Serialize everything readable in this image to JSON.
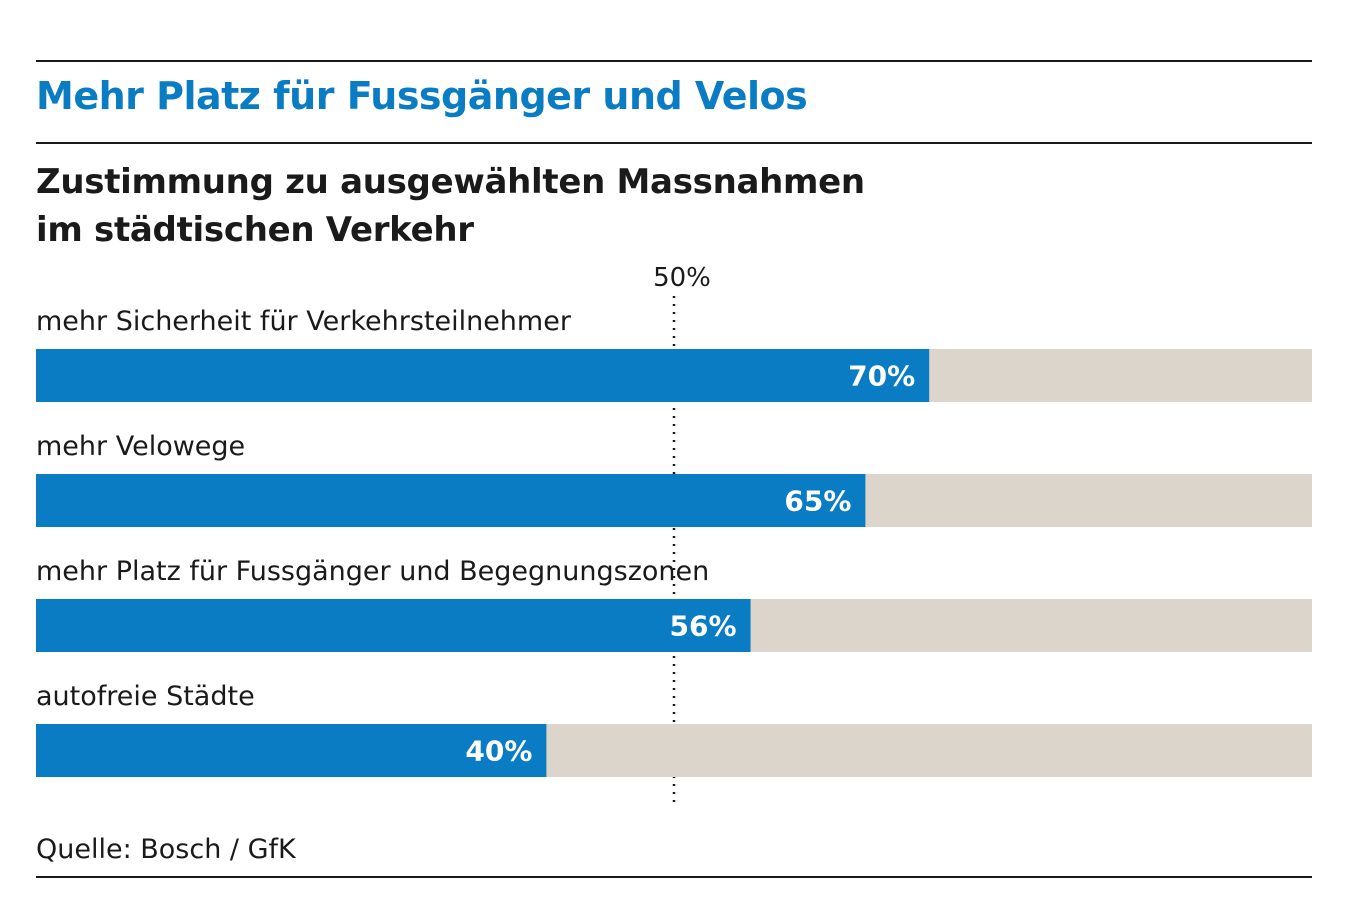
{
  "header": {
    "title": "Mehr Platz für Fussgänger und Velos",
    "subtitle_line1": "Zustimmung zu ausgewählten Massnahmen",
    "subtitle_line2": "im städtischen Verkehr"
  },
  "colors": {
    "title": "#0a7cc4",
    "bar": "#0a7cc4",
    "track": "#dcd5cb",
    "text": "#1a1a1a",
    "bar_label": "#ffffff"
  },
  "chart_data": {
    "type": "bar",
    "orientation": "horizontal",
    "title": "Zustimmung zu ausgewählten Massnahmen im städtischen Verkehr",
    "categories": [
      "mehr Sicherheit für Verkehrsteilnehmer",
      "mehr Velowege",
      "mehr Platz für Fussgänger und Begegnungszonen",
      "autofreie Städte"
    ],
    "values": [
      70,
      65,
      56,
      40
    ],
    "value_labels": [
      "70%",
      "65%",
      "56%",
      "40%"
    ],
    "xlim": [
      0,
      100
    ],
    "reference_line": {
      "value": 50,
      "label": "50%"
    },
    "grid": false,
    "legend": "none"
  },
  "footer": {
    "source": "Quelle: Bosch / GfK"
  }
}
